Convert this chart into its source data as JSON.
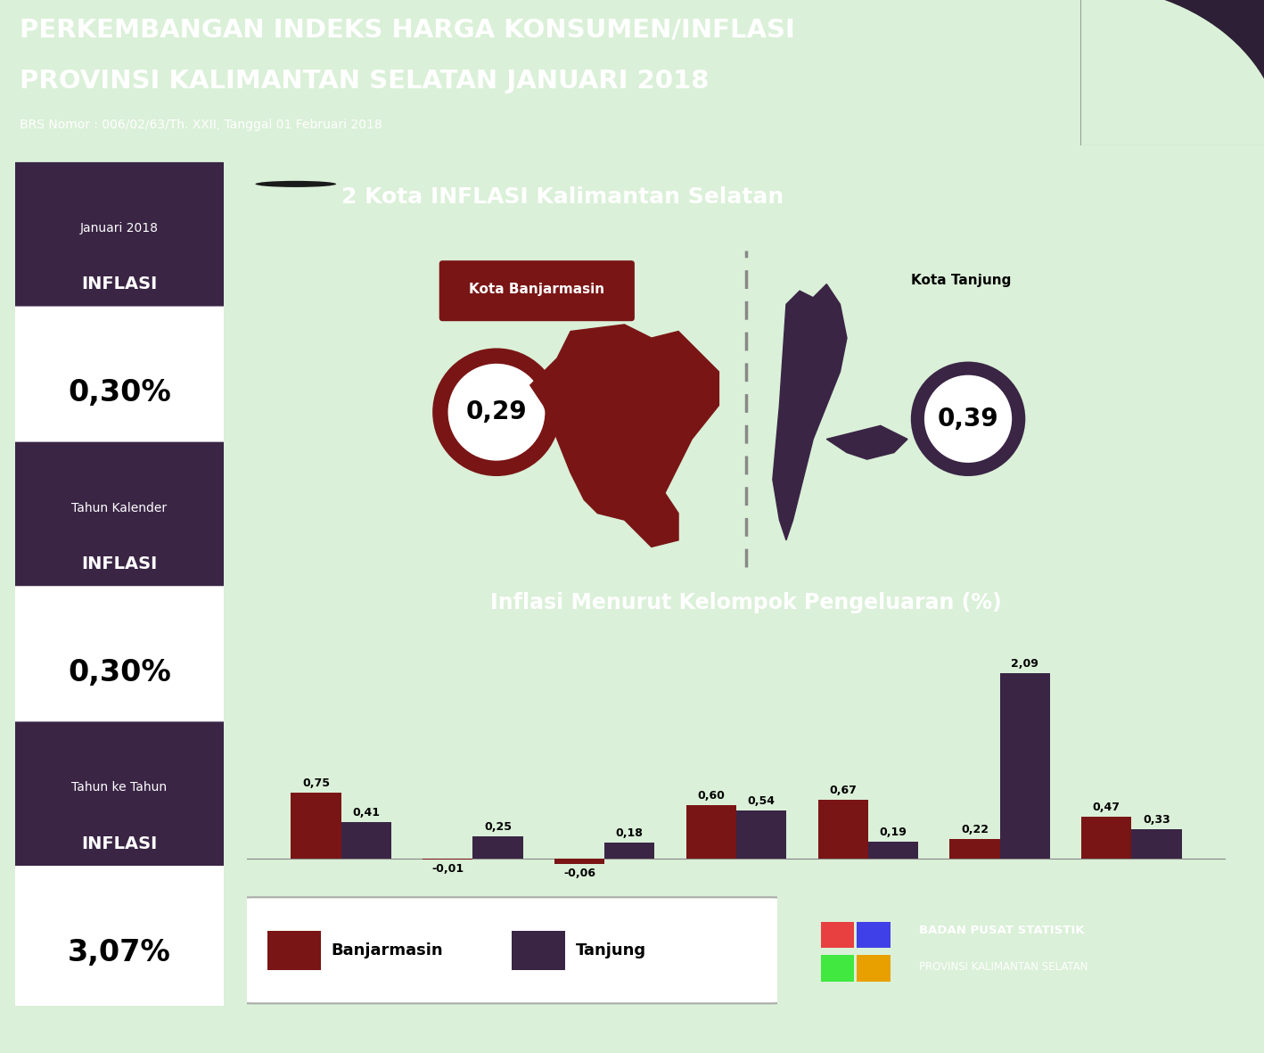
{
  "title_line1": "PERKEMBANGAN INDEKS HARGA KONSUMEN/INFLASI",
  "title_line2": "PROVINSI KALIMANTAN SELATAN JANUARI 2018",
  "subtitle": "BRS Nomor : 006/02/63/Th. XXII, Tanggal 01 Februari 2018",
  "header_bg": "#2d1f35",
  "light_green_bg": "#daf0d8",
  "panel_bg": "#3a2545",
  "dark_bar": "#1a1a1a",
  "left_panel_labels_top": [
    "Januari 2018",
    "Tahun Kalender",
    "Tahun ke Tahun"
  ],
  "left_panel_labels_bot": [
    "INFLASI",
    "INFLASI",
    "INFLASI"
  ],
  "left_panel_values": [
    "0,30%",
    "0,30%",
    "3,07%"
  ],
  "kota_header": "2 Kota INFLASI Kalimantan Selatan",
  "kota1_name": "Kota Banjarmasin",
  "kota1_value": "0,29",
  "kota1_color": "#7a1515",
  "kota2_name": "Kota Tanjung",
  "kota2_value": "0,39",
  "kota2_color": "#3a2545",
  "bar_title": "Inflasi Menurut Kelompok Pengeluaran (%)",
  "banjarmasin_values": [
    0.75,
    -0.01,
    -0.06,
    0.6,
    0.67,
    0.22,
    0.47
  ],
  "tanjung_values": [
    0.41,
    0.25,
    0.18,
    0.54,
    0.19,
    2.09,
    0.33
  ],
  "banjarmasin_color": "#7a1515",
  "tanjung_color": "#3a2545",
  "ylim": [
    -0.35,
    2.5
  ],
  "bps_colors": [
    "#e84040",
    "#4040e8",
    "#40e840",
    "#e8a000"
  ]
}
